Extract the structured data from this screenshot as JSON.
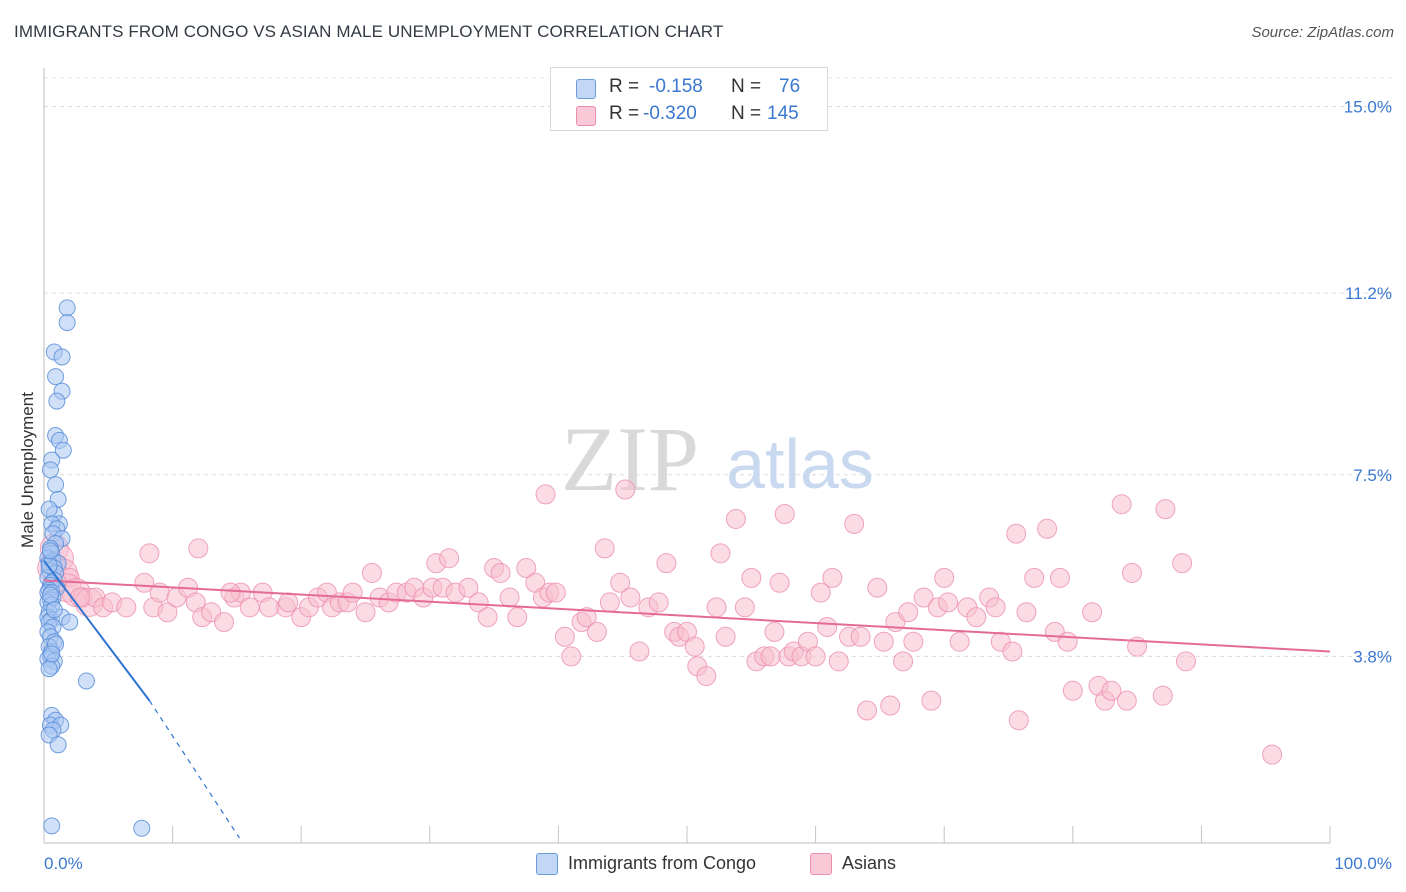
{
  "title": "IMMIGRANTS FROM CONGO VS ASIAN MALE UNEMPLOYMENT CORRELATION CHART",
  "source": "Source: ZipAtlas.com",
  "watermark": {
    "zip": "ZIP",
    "atlas": "atlas"
  },
  "legend": {
    "r_label": "R =",
    "n_label": "N =",
    "rows": [
      {
        "r": "-0.158",
        "n": "76"
      },
      {
        "r": "-0.320",
        "n": "145"
      }
    ]
  },
  "colors": {
    "congo_fill": "#a9c7f2",
    "congo_stroke": "#5a8fd8",
    "congo_line": "#2f74d0",
    "asian_fill": "#f8bfd0",
    "asian_stroke": "#ec8fae",
    "asian_line": "#e56b97",
    "tick_label": "#3b78d0"
  },
  "chart_data": {
    "type": "scatter",
    "title": "IMMIGRANTS FROM CONGO VS ASIAN MALE UNEMPLOYMENT CORRELATION CHART",
    "xlabel": "",
    "ylabel": "Male Unemployment",
    "xlim": [
      0,
      100
    ],
    "ylim": [
      0,
      15.5
    ],
    "x_tick_labels": [
      "0.0%",
      "100.0%"
    ],
    "y_ticks": [
      3.8,
      7.5,
      11.2,
      15.0
    ],
    "y_tick_labels": [
      "3.8%",
      "7.5%",
      "11.2%",
      "15.0%"
    ],
    "grid": true,
    "legend_position": "top-center",
    "series": [
      {
        "name": "Immigrants from Congo",
        "R": -0.158,
        "N": 76,
        "trend": {
          "x": [
            0,
            8.2
          ],
          "y": [
            5.75,
            2.9
          ],
          "dashed_to": [
            15.2,
            0.1
          ]
        },
        "points": [
          [
            1.8,
            10.9
          ],
          [
            1.8,
            10.6
          ],
          [
            0.8,
            10.0
          ],
          [
            1.4,
            9.9
          ],
          [
            0.9,
            9.5
          ],
          [
            1.4,
            9.2
          ],
          [
            1.0,
            9.0
          ],
          [
            0.9,
            8.3
          ],
          [
            1.2,
            8.2
          ],
          [
            1.5,
            8.0
          ],
          [
            0.6,
            7.8
          ],
          [
            0.5,
            7.6
          ],
          [
            0.9,
            7.3
          ],
          [
            1.1,
            7.0
          ],
          [
            0.8,
            6.7
          ],
          [
            1.2,
            6.5
          ],
          [
            0.4,
            6.8
          ],
          [
            0.6,
            6.5
          ],
          [
            1.0,
            6.4
          ],
          [
            0.7,
            6.3
          ],
          [
            1.4,
            6.2
          ],
          [
            0.9,
            6.1
          ],
          [
            0.5,
            6.0
          ],
          [
            0.6,
            5.9
          ],
          [
            0.3,
            5.8
          ],
          [
            0.7,
            5.75
          ],
          [
            0.4,
            5.7
          ],
          [
            1.1,
            5.7
          ],
          [
            0.8,
            5.6
          ],
          [
            0.4,
            5.55
          ],
          [
            0.9,
            5.5
          ],
          [
            0.3,
            5.4
          ],
          [
            0.8,
            5.35
          ],
          [
            0.6,
            5.3
          ],
          [
            0.5,
            5.25
          ],
          [
            1.0,
            5.2
          ],
          [
            0.4,
            5.15
          ],
          [
            0.3,
            5.1
          ],
          [
            0.6,
            5.1
          ],
          [
            0.7,
            5.0
          ],
          [
            0.5,
            4.95
          ],
          [
            0.3,
            4.9
          ],
          [
            0.6,
            4.85
          ],
          [
            0.4,
            4.7
          ],
          [
            0.3,
            4.6
          ],
          [
            0.6,
            4.55
          ],
          [
            0.4,
            4.5
          ],
          [
            1.4,
            4.6
          ],
          [
            2.0,
            4.5
          ],
          [
            0.7,
            4.4
          ],
          [
            0.3,
            4.3
          ],
          [
            0.5,
            4.2
          ],
          [
            0.8,
            4.1
          ],
          [
            0.4,
            4.0
          ],
          [
            0.6,
            3.9
          ],
          [
            0.5,
            3.8
          ],
          [
            0.3,
            3.75
          ],
          [
            0.8,
            3.7
          ],
          [
            0.6,
            3.6
          ],
          [
            0.4,
            3.55
          ],
          [
            3.3,
            3.3
          ],
          [
            0.6,
            2.6
          ],
          [
            0.9,
            2.5
          ],
          [
            0.5,
            2.4
          ],
          [
            1.3,
            2.4
          ],
          [
            0.7,
            2.3
          ],
          [
            0.4,
            2.2
          ],
          [
            1.1,
            2.0
          ],
          [
            0.6,
            0.35
          ],
          [
            7.6,
            0.3
          ],
          [
            0.5,
            5.05
          ],
          [
            0.8,
            4.75
          ],
          [
            0.4,
            5.65
          ],
          [
            0.9,
            4.05
          ],
          [
            0.6,
            3.85
          ],
          [
            0.5,
            5.95
          ]
        ]
      },
      {
        "name": "Asians",
        "R": -0.32,
        "N": 145,
        "trend": {
          "x": [
            0,
            100
          ],
          "y": [
            5.35,
            3.9
          ]
        },
        "points": [
          [
            0.8,
            6.0
          ],
          [
            1.2,
            5.8
          ],
          [
            0.6,
            5.6
          ],
          [
            1.5,
            5.5
          ],
          [
            2.0,
            5.4
          ],
          [
            1.8,
            5.2
          ],
          [
            2.5,
            5.1
          ],
          [
            3.0,
            5.0
          ],
          [
            3.5,
            4.9
          ],
          [
            4.0,
            5.0
          ],
          [
            4.6,
            4.8
          ],
          [
            5.3,
            4.9
          ],
          [
            6.4,
            4.8
          ],
          [
            7.8,
            5.3
          ],
          [
            8.2,
            5.9
          ],
          [
            8.5,
            4.8
          ],
          [
            9.0,
            5.1
          ],
          [
            9.6,
            4.7
          ],
          [
            10.3,
            5.0
          ],
          [
            11.2,
            5.2
          ],
          [
            11.8,
            4.9
          ],
          [
            12.3,
            4.6
          ],
          [
            13.0,
            4.7
          ],
          [
            12.0,
            6.0
          ],
          [
            14.0,
            4.5
          ],
          [
            14.8,
            5.0
          ],
          [
            15.3,
            5.1
          ],
          [
            16.0,
            4.8
          ],
          [
            14.5,
            5.1
          ],
          [
            18.8,
            4.8
          ],
          [
            17.0,
            5.1
          ],
          [
            17.5,
            4.8
          ],
          [
            19.0,
            4.9
          ],
          [
            20.0,
            4.6
          ],
          [
            20.6,
            4.8
          ],
          [
            21.3,
            5.0
          ],
          [
            22.0,
            5.1
          ],
          [
            22.4,
            4.8
          ],
          [
            23.0,
            4.9
          ],
          [
            23.6,
            4.9
          ],
          [
            24.0,
            5.1
          ],
          [
            25.0,
            4.7
          ],
          [
            25.5,
            5.5
          ],
          [
            26.1,
            5.0
          ],
          [
            26.8,
            4.9
          ],
          [
            27.4,
            5.1
          ],
          [
            28.2,
            5.1
          ],
          [
            28.8,
            5.2
          ],
          [
            29.5,
            5.0
          ],
          [
            30.2,
            5.2
          ],
          [
            30.5,
            5.7
          ],
          [
            31.5,
            5.8
          ],
          [
            31.0,
            5.2
          ],
          [
            32.0,
            5.1
          ],
          [
            33.0,
            5.2
          ],
          [
            33.8,
            4.9
          ],
          [
            34.5,
            4.6
          ],
          [
            35.0,
            5.6
          ],
          [
            35.5,
            5.5
          ],
          [
            36.2,
            5.0
          ],
          [
            36.8,
            4.6
          ],
          [
            37.5,
            5.6
          ],
          [
            38.2,
            5.3
          ],
          [
            38.8,
            5.0
          ],
          [
            39.3,
            5.1
          ],
          [
            39.0,
            7.1
          ],
          [
            39.8,
            5.1
          ],
          [
            40.5,
            4.2
          ],
          [
            41.0,
            3.8
          ],
          [
            41.8,
            4.5
          ],
          [
            42.2,
            4.6
          ],
          [
            43.0,
            4.3
          ],
          [
            43.6,
            6.0
          ],
          [
            44.0,
            4.9
          ],
          [
            44.8,
            5.3
          ],
          [
            45.2,
            7.2
          ],
          [
            45.6,
            5.0
          ],
          [
            46.3,
            3.9
          ],
          [
            47.0,
            4.8
          ],
          [
            47.8,
            4.9
          ],
          [
            48.4,
            5.7
          ],
          [
            49.0,
            4.3
          ],
          [
            49.4,
            4.2
          ],
          [
            50.0,
            4.3
          ],
          [
            50.6,
            4.0
          ],
          [
            50.8,
            3.6
          ],
          [
            51.5,
            3.4
          ],
          [
            52.3,
            4.8
          ],
          [
            52.6,
            5.9
          ],
          [
            53.0,
            4.2
          ],
          [
            53.8,
            6.6
          ],
          [
            54.5,
            4.8
          ],
          [
            55.0,
            5.4
          ],
          [
            55.4,
            3.7
          ],
          [
            56.0,
            3.8
          ],
          [
            56.5,
            3.8
          ],
          [
            56.8,
            4.3
          ],
          [
            57.2,
            5.3
          ],
          [
            57.6,
            6.7
          ],
          [
            57.9,
            3.8
          ],
          [
            58.3,
            3.9
          ],
          [
            58.9,
            3.8
          ],
          [
            59.4,
            4.1
          ],
          [
            60.0,
            3.8
          ],
          [
            60.4,
            5.1
          ],
          [
            60.9,
            4.4
          ],
          [
            61.3,
            5.4
          ],
          [
            61.8,
            3.7
          ],
          [
            62.6,
            4.2
          ],
          [
            63.0,
            6.5
          ],
          [
            63.5,
            4.2
          ],
          [
            64.0,
            2.7
          ],
          [
            64.8,
            5.2
          ],
          [
            65.3,
            4.1
          ],
          [
            65.8,
            2.8
          ],
          [
            66.2,
            4.5
          ],
          [
            66.8,
            3.7
          ],
          [
            67.2,
            4.7
          ],
          [
            67.6,
            4.1
          ],
          [
            68.4,
            5.0
          ],
          [
            69.0,
            2.9
          ],
          [
            69.5,
            4.8
          ],
          [
            70.0,
            5.4
          ],
          [
            70.3,
            4.9
          ],
          [
            71.2,
            4.1
          ],
          [
            71.8,
            4.8
          ],
          [
            72.5,
            4.6
          ],
          [
            73.5,
            5.0
          ],
          [
            74.0,
            4.8
          ],
          [
            74.4,
            4.1
          ],
          [
            75.3,
            3.9
          ],
          [
            75.6,
            6.3
          ],
          [
            75.8,
            2.5
          ],
          [
            76.4,
            4.7
          ],
          [
            77.0,
            5.4
          ],
          [
            78.0,
            6.4
          ],
          [
            78.6,
            4.3
          ],
          [
            79.0,
            5.4
          ],
          [
            79.6,
            4.1
          ],
          [
            80.0,
            3.1
          ],
          [
            81.5,
            4.7
          ],
          [
            82.0,
            3.2
          ],
          [
            82.5,
            2.9
          ],
          [
            83.0,
            3.1
          ],
          [
            83.8,
            6.9
          ],
          [
            84.2,
            2.9
          ],
          [
            84.6,
            5.5
          ],
          [
            85.0,
            4.0
          ],
          [
            87.0,
            3.0
          ],
          [
            87.2,
            6.8
          ],
          [
            88.5,
            5.7
          ],
          [
            88.8,
            3.7
          ],
          [
            95.5,
            1.8
          ],
          [
            1.0,
            5.3
          ],
          [
            2.8,
            5.0
          ]
        ]
      }
    ]
  },
  "bottom_legend": [
    "Immigrants from Congo",
    "Asians"
  ]
}
